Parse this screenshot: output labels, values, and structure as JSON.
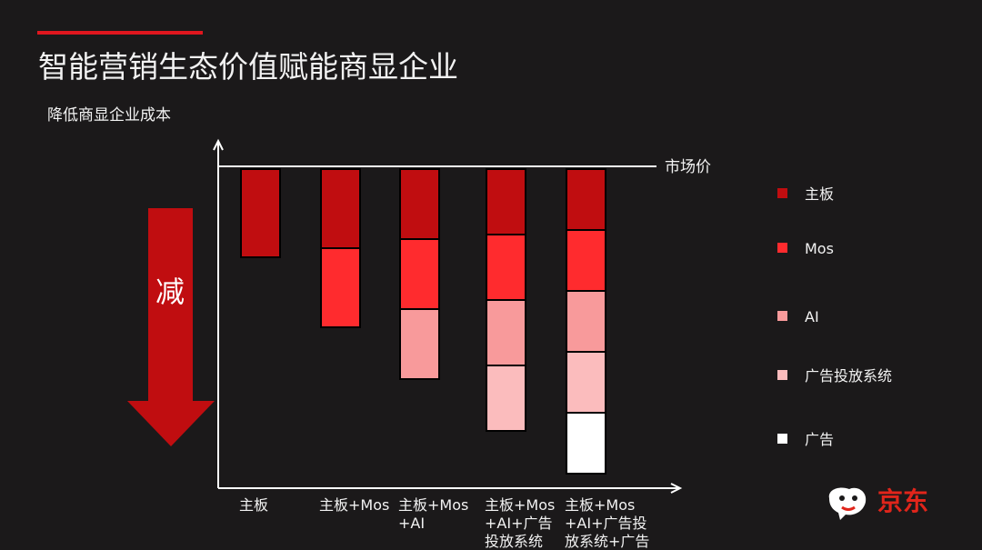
{
  "slide": {
    "title": "智能营销生态价值赋能商显企业",
    "subtitle": "降低商显企业成本",
    "arrow_label": "减",
    "logo_text": "京东"
  },
  "colors": {
    "background": "#1b191a",
    "accent": "#e0161e",
    "arrow": "#c00d10",
    "logo": "#e1251b"
  },
  "icons": [
    "jd-dog-logo-icon",
    "down-arrow-icon"
  ],
  "chart_data": {
    "type": "bar",
    "stacked": true,
    "orientation": "downward from market-price line",
    "reference_line_label": "市场价",
    "categories": [
      [
        "主板"
      ],
      [
        "主板+Mos"
      ],
      [
        "主板+Mos",
        "+AI"
      ],
      [
        "主板+Mos",
        "+AI+广告",
        "投放系统"
      ],
      [
        "主板+Mos",
        "+AI+广告投",
        "放系统+广告"
      ]
    ],
    "series": [
      {
        "name": "主板",
        "color": "#c00d10",
        "values": [
          1,
          1,
          1,
          1,
          1
        ]
      },
      {
        "name": "Mos",
        "color": "#ff2b2e",
        "values": [
          0,
          1,
          1,
          1,
          1
        ]
      },
      {
        "name": "AI",
        "color": "#f89a9b",
        "values": [
          0,
          0,
          1,
          1,
          1
        ]
      },
      {
        "name": "广告投放系统",
        "color": "#fbbcbd",
        "values": [
          0,
          0,
          0,
          1,
          1
        ]
      },
      {
        "name": "广告",
        "color": "#ffffff",
        "values": [
          0,
          0,
          0,
          0,
          1
        ]
      }
    ],
    "legend_position": "right",
    "grid": false
  }
}
